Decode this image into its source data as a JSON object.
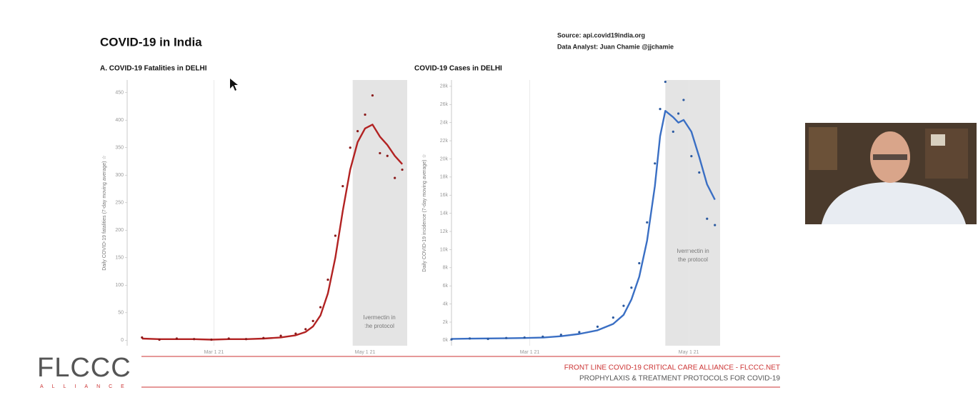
{
  "slide_title": "COVID-19 in India",
  "source": [
    "Source: api.covid19india.org",
    "Data Analyst:  Juan Chamie @jjchamie"
  ],
  "footer": {
    "logo": "FLCCC",
    "logo_sub": "ALLIANCE",
    "line1": "FRONT LINE COVID-19 CRITICAL CARE ALLIANCE - FLCCC.NET",
    "line2": "PROPHYLAXIS & TREATMENT PROTOCOLS FOR COVID-19"
  },
  "chart_data": [
    {
      "type": "line",
      "title": "A. COVID-19 Fatalities in DELHI",
      "y_label": "Daily COVID-19 fatalities (7-day moving average) ☆",
      "x": [
        "2021-01-31",
        "2021-02-07",
        "2021-02-14",
        "2021-02-21",
        "2021-02-28",
        "2021-03-07",
        "2021-03-14",
        "2021-03-21",
        "2021-03-28",
        "2021-04-03",
        "2021-04-07",
        "2021-04-10",
        "2021-04-13",
        "2021-04-16",
        "2021-04-19",
        "2021-04-22",
        "2021-04-25",
        "2021-04-28",
        "2021-05-01",
        "2021-05-04",
        "2021-05-07",
        "2021-05-10",
        "2021-05-13",
        "2021-05-16"
      ],
      "series": [
        {
          "style": "line",
          "color": "#b22222",
          "values": [
            3,
            2,
            2,
            2,
            1,
            2,
            2,
            3,
            5,
            9,
            15,
            25,
            45,
            85,
            150,
            235,
            310,
            360,
            385,
            392,
            370,
            355,
            335,
            320
          ]
        },
        {
          "style": "points",
          "color": "#8b1a1a",
          "values": [
            5,
            1,
            3,
            2,
            1,
            3,
            2,
            4,
            8,
            12,
            20,
            35,
            60,
            110,
            190,
            280,
            350,
            380,
            410,
            445,
            340,
            335,
            295,
            310
          ]
        }
      ],
      "xlim": [
        "2021-01-25",
        "2021-05-18"
      ],
      "xticks": [
        {
          "value": "2021-03-01",
          "label": "Mar 1 21"
        },
        {
          "value": "2021-05-01",
          "label": "May 1 21"
        }
      ],
      "ylim": [
        -10,
        473
      ],
      "yticks": [
        0,
        50,
        100,
        150,
        200,
        250,
        300,
        350,
        400,
        450
      ],
      "annotation": {
        "text": "Ivermectin in the protocol",
        "x_start": "2021-04-26"
      }
    },
    {
      "type": "line",
      "title": "COVID-19 Cases in DELHI",
      "y_label": "Daily COVID-19 incidence (7-day moving average) ☆",
      "x": [
        "2021-01-30",
        "2021-02-06",
        "2021-02-13",
        "2021-02-20",
        "2021-02-27",
        "2021-03-06",
        "2021-03-13",
        "2021-03-20",
        "2021-03-27",
        "2021-04-02",
        "2021-04-06",
        "2021-04-09",
        "2021-04-12",
        "2021-04-15",
        "2021-04-18",
        "2021-04-20",
        "2021-04-22",
        "2021-04-25",
        "2021-04-27",
        "2021-04-29",
        "2021-05-02",
        "2021-05-05",
        "2021-05-08",
        "2021-05-11"
      ],
      "series": [
        {
          "style": "line",
          "color": "#3a6fc4",
          "values": [
            150,
            180,
            200,
            220,
            250,
            300,
            450,
            700,
            1100,
            1800,
            2800,
            4500,
            7000,
            11000,
            17000,
            22500,
            25300,
            24600,
            24000,
            24300,
            23000,
            20200,
            17200,
            15500
          ]
        },
        {
          "style": "points",
          "color": "#2c5aa0",
          "values": [
            100,
            200,
            150,
            250,
            300,
            400,
            600,
            900,
            1500,
            2500,
            3800,
            5800,
            8500,
            13000,
            19500,
            25500,
            28500,
            23000,
            25000,
            26500,
            20300,
            18500,
            13400,
            12700
          ]
        }
      ],
      "xlim": [
        "2021-01-30",
        "2021-05-13"
      ],
      "xticks": [
        {
          "value": "2021-03-01",
          "label": "Mar 1 21"
        },
        {
          "value": "2021-05-01",
          "label": "May 1 21"
        }
      ],
      "ylim": [
        -600,
        28700
      ],
      "yticks": [
        {
          "value": 0,
          "label": "0k"
        },
        {
          "value": 2000,
          "label": "2k"
        },
        {
          "value": 4000,
          "label": "4k"
        },
        {
          "value": 6000,
          "label": "6k"
        },
        {
          "value": 8000,
          "label": "8k"
        },
        {
          "value": 10000,
          "label": "10k"
        },
        {
          "value": 12000,
          "label": "12k"
        },
        {
          "value": 14000,
          "label": "14k"
        },
        {
          "value": 16000,
          "label": "16k"
        },
        {
          "value": 18000,
          "label": "18k"
        },
        {
          "value": 20000,
          "label": "20k"
        },
        {
          "value": 22000,
          "label": "22k"
        },
        {
          "value": 24000,
          "label": "24k"
        },
        {
          "value": 26000,
          "label": "26k"
        },
        {
          "value": 28000,
          "label": "28k"
        }
      ],
      "annotation": {
        "text": "Ivermectin in the protocol",
        "x_start": "2021-04-22"
      }
    }
  ]
}
